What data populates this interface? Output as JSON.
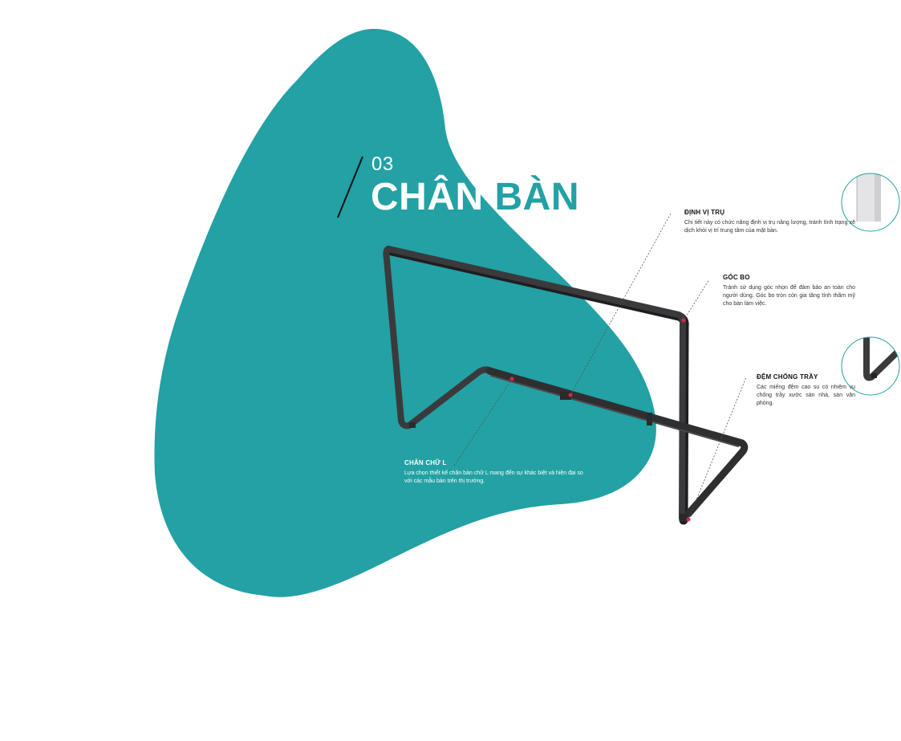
{
  "section": {
    "number": "03",
    "title_part_1": "CHÂN",
    "title_part_2": "BÀN"
  },
  "callouts": {
    "dinh_vi_tru": {
      "heading": "ĐỊNH VỊ TRỤ",
      "body": "Chi tiết này có chức năng định vị trụ năng lượng, tránh tình trạng xê dịch khỏi vị trí trung tâm của mặt bàn."
    },
    "goc_bo": {
      "heading": "GÓC BO",
      "body": "Tránh sử dụng góc nhọn để đảm bảo an toàn cho người dùng. Góc bo tròn còn gia tăng tính thẩm mỹ cho bàn làm việc."
    },
    "dem_chong_tray": {
      "heading": "ĐỆM CHỐNG TRẦY",
      "body": "Các miếng đệm cao su có nhiệm vụ chống trầy xước sàn nhà, sàn văn phòng."
    },
    "chan_chu_l": {
      "heading": "CHÂN CHỮ L",
      "body": "Lựa chọn thiết kế chân bàn chữ L mang đến sự khác biệt và hiện đại so với các mẫu bàn trên thị trường."
    }
  },
  "colors": {
    "accent": "#23a1a4",
    "frame": "#3a3a3c",
    "marker": "#e0254a"
  },
  "icons": {
    "detail_circle_top": "pillar-bracket-detail",
    "detail_circle_bottom": "foot-pad-detail"
  }
}
